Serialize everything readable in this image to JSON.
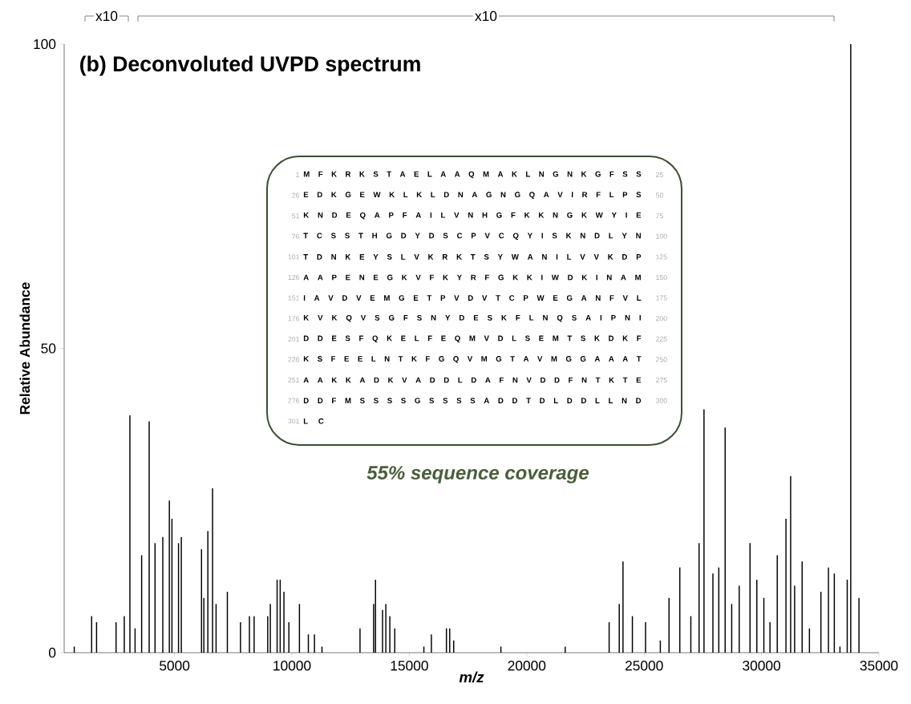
{
  "chart_data": {
    "type": "bar",
    "title": "(b)  Deconvoluted UVPD spectrum",
    "xlabel": "m/z",
    "ylabel": "Relative Abundance",
    "color": "#000000",
    "x": [
      730,
      1470,
      1680,
      2510,
      2860,
      3100,
      3320,
      3600,
      3920,
      4170,
      4500,
      4780,
      4890,
      5170,
      5290,
      6150,
      6250,
      6420,
      6620,
      6770,
      7250,
      7810,
      8190,
      8390,
      8970,
      9080,
      9370,
      9500,
      9660,
      9870,
      10320,
      10700,
      10960,
      11280,
      12900,
      13480,
      13560,
      13860,
      14000,
      14170,
      14380,
      15620,
      15940,
      16580,
      16720,
      16890,
      18900,
      21640,
      23510,
      23940,
      24100,
      24500,
      25060,
      25690,
      26060,
      26520,
      26990,
      27340,
      27550,
      27930,
      28180,
      28450,
      28730,
      29050,
      29510,
      29800,
      30100,
      30360,
      30670,
      31040,
      31240,
      31410,
      31730,
      32040,
      32530,
      32850,
      33100,
      33340,
      33650,
      33800,
      34150
    ],
    "values": [
      1,
      6,
      5,
      5,
      6,
      39,
      4,
      16,
      38,
      18,
      19,
      25,
      22,
      18,
      19,
      17,
      9,
      20,
      27,
      8,
      10,
      5,
      6,
      6,
      6,
      8,
      12,
      12,
      10,
      5,
      8,
      3,
      3,
      1,
      4,
      8,
      12,
      7,
      8,
      6,
      4,
      1,
      3,
      4,
      4,
      2,
      1,
      1,
      5,
      8,
      15,
      6,
      5,
      2,
      9,
      14,
      6,
      18,
      40,
      13,
      14,
      37,
      8,
      11,
      18,
      12,
      9,
      5,
      16,
      22,
      29,
      11,
      15,
      4,
      10,
      14,
      13,
      1,
      12,
      100,
      9
    ],
    "xlim": [
      300,
      35000
    ],
    "ylim": [
      0,
      100
    ],
    "xticks": [
      5000,
      10000,
      15000,
      20000,
      25000,
      30000,
      35000
    ],
    "yticks": [
      0,
      50,
      100
    ],
    "annotations": [
      "x10",
      "x10",
      "55% sequence coverage",
      "1",
      "M F K R K S T A E L A A Q M A K L N G N K G F S S",
      "25",
      "26",
      "E D K G E W K L K L D N A G N G Q A V I R F L P S",
      "50",
      "51",
      "K N D E Q A P F A I L V N H G F K K N G K W Y I E",
      "75",
      "76",
      "T C S S T H G D Y D S C P V C Q Y I S K N D L Y N",
      "100",
      "101",
      "T D N K E Y S L V K R K T S Y W A N I L V V K D P",
      "125",
      "126",
      "A A P E N E G K V F K Y R F G K K I W D K I N A M",
      "150",
      "151",
      "I A V D V E M G E T P V D V T C P W E G A N F V L",
      "175",
      "176",
      "K V K Q V S G F S N Y D E S K F L N Q S A I P N I",
      "200",
      "201",
      "D D E S F Q K E L F E Q M V D L S E M T S K D K F",
      "225",
      "226",
      "K S F E E L N T K F G Q V M G T A V M G G A A A T",
      "250",
      "251",
      "A A K K A D K V A D D L D A F N V D D F N T K T E",
      "275",
      "276",
      "D D F M S S S S G S S S S A D D T D L D D L L N D",
      "300",
      "301",
      "L C"
    ]
  }
}
